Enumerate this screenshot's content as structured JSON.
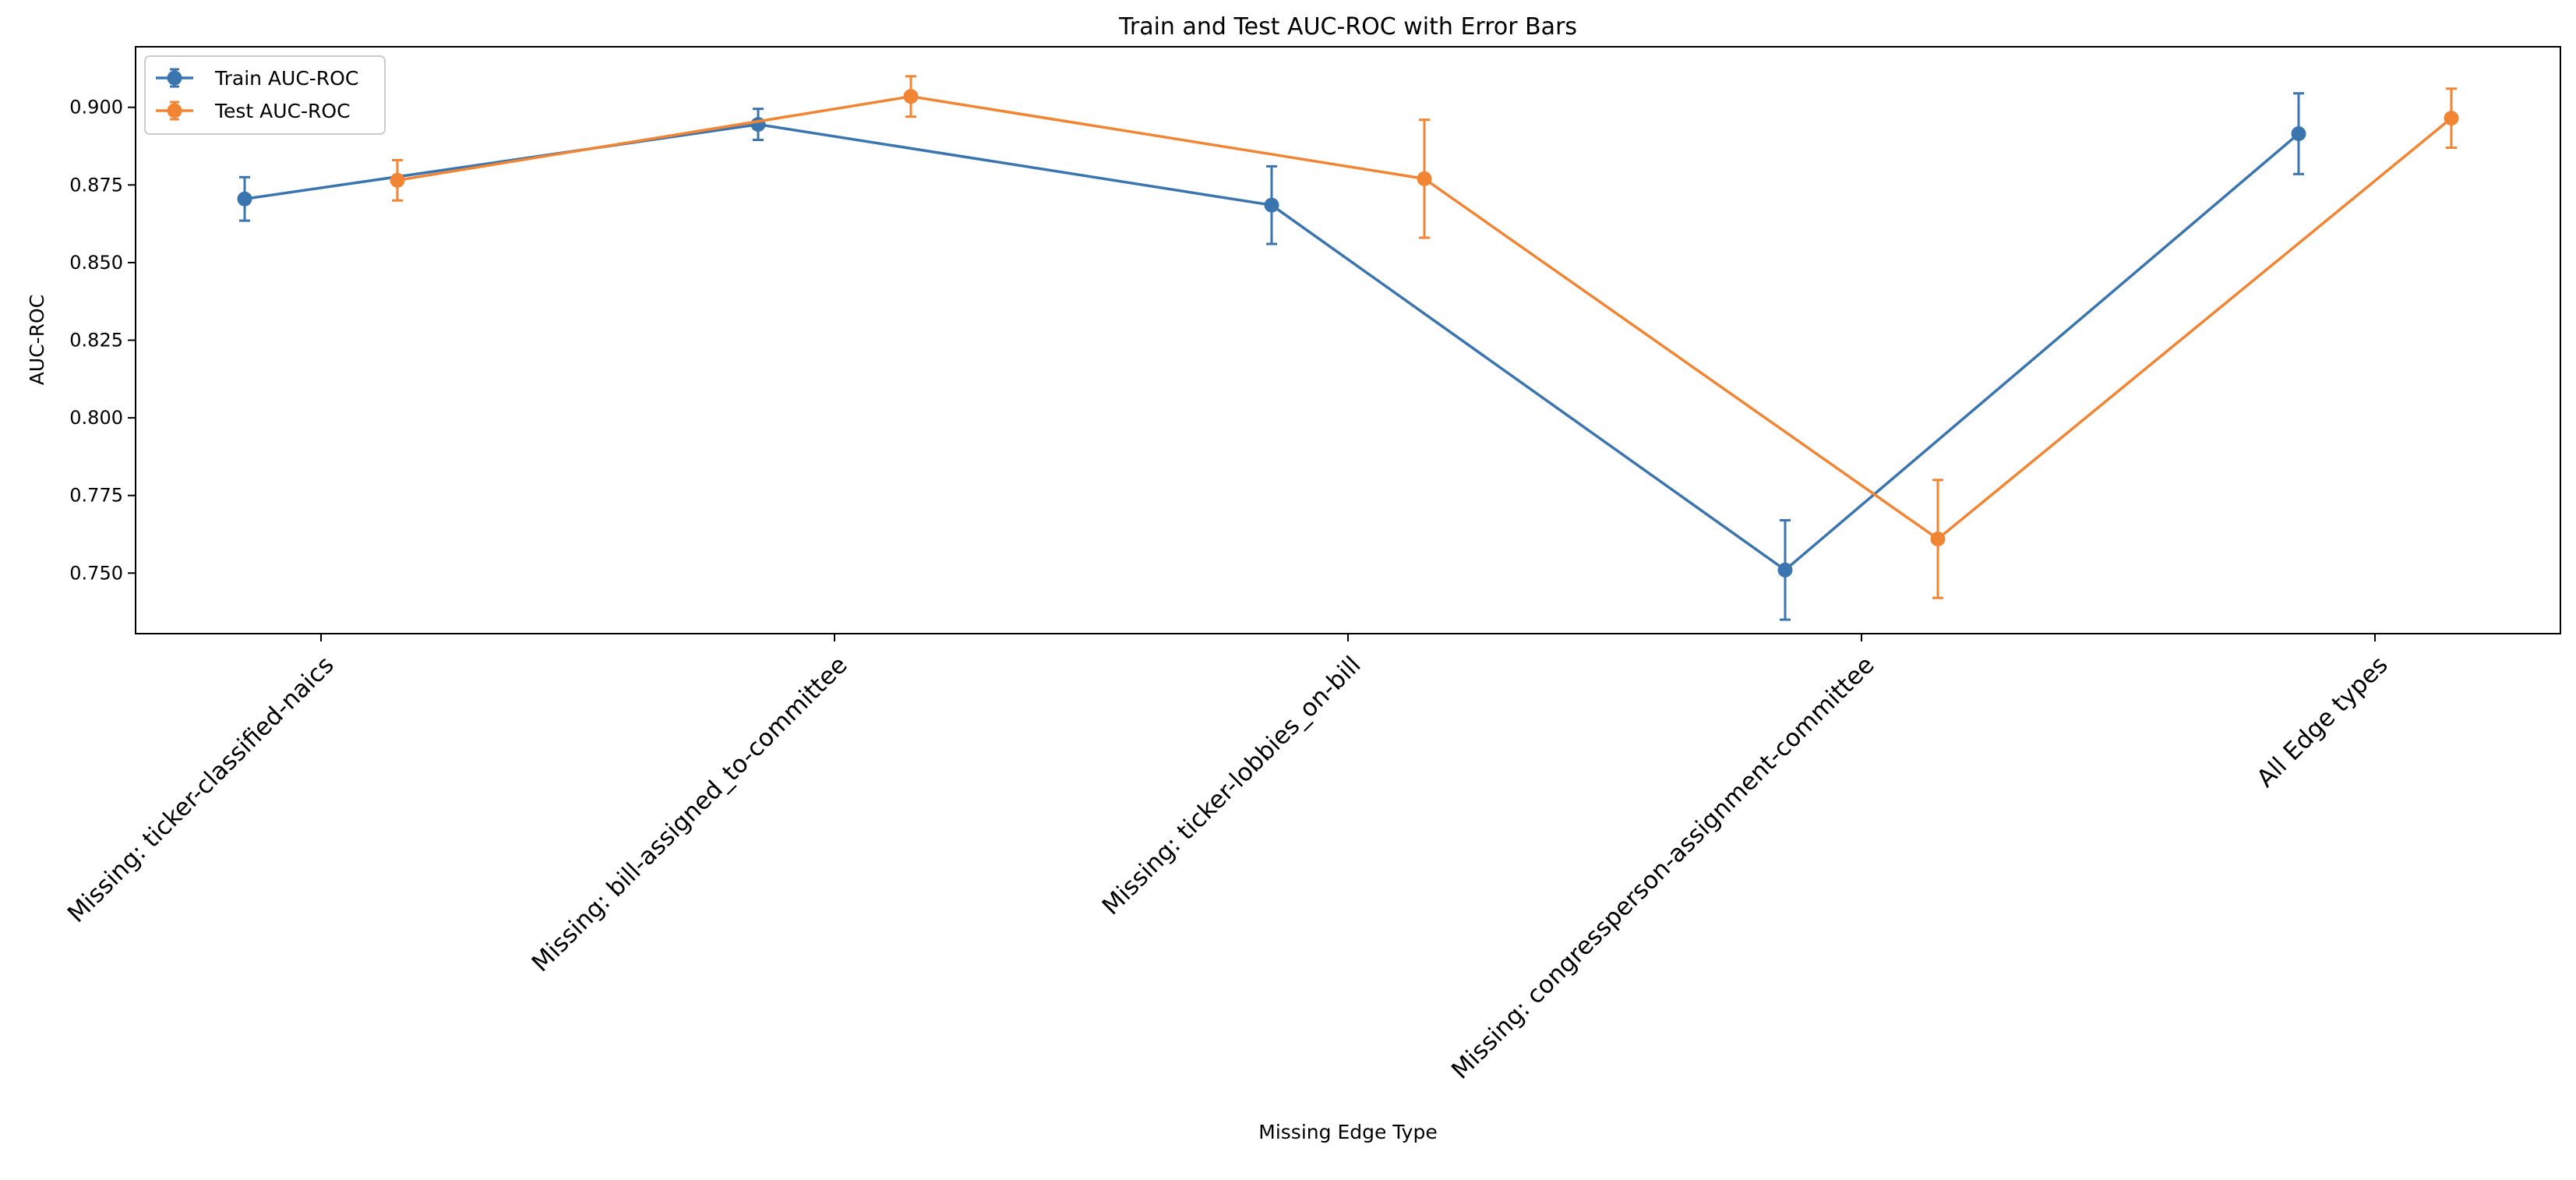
{
  "chart_data": {
    "type": "line",
    "title": "Train and Test AUC-ROC with Error Bars",
    "xlabel": "Missing Edge Type",
    "ylabel": "AUC-ROC",
    "ylim": [
      0.7305,
      0.9195
    ],
    "yticks": [
      0.75,
      0.775,
      0.8,
      0.825,
      0.85,
      0.875,
      0.9
    ],
    "ytick_labels": [
      "0.750",
      "0.775",
      "0.800",
      "0.825",
      "0.850",
      "0.875",
      "0.900"
    ],
    "categories": [
      "Missing: ticker-classified-naics",
      "Missing: bill-assigned_to-committee",
      "Missing: ticker-lobbies_on-bill",
      "Missing: congressperson-assignment-committee",
      "All Edge types"
    ],
    "grid": false,
    "legend_position": "upper-left",
    "series": [
      {
        "name": "Train AUC-ROC",
        "color": "#3a75b0",
        "values": [
          0.8705,
          0.8945,
          0.8685,
          0.751,
          0.8915
        ],
        "errors": [
          0.007,
          0.005,
          0.0125,
          0.016,
          0.013
        ]
      },
      {
        "name": "Test AUC-ROC",
        "color": "#f28533",
        "values": [
          0.8765,
          0.9035,
          0.877,
          0.761,
          0.8965
        ],
        "errors": [
          0.0065,
          0.0065,
          0.019,
          0.019,
          0.0095
        ]
      }
    ]
  }
}
